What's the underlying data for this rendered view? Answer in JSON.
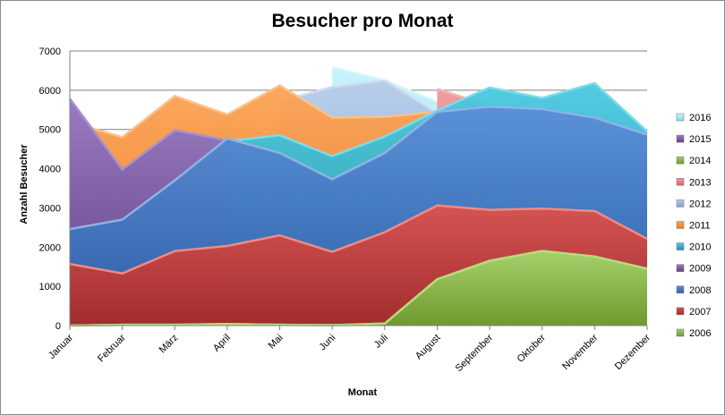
{
  "chart_data": {
    "type": "area",
    "title": "Besucher pro Monat",
    "xlabel": "Monat",
    "ylabel": "Anzahl Besucher",
    "ylim": [
      0,
      7000
    ],
    "yticks": [
      "0",
      "1000",
      "2000",
      "3000",
      "4000",
      "5000",
      "6000",
      "7000"
    ],
    "ytick_values": [
      0,
      1000,
      2000,
      3000,
      4000,
      5000,
      6000,
      7000
    ],
    "categories": [
      "Januar",
      "Februar",
      "März",
      "April",
      "Mai",
      "Juni",
      "Juli",
      "August",
      "September",
      "Oktober",
      "November",
      "Dezember"
    ],
    "grid": true,
    "legend_position": "right",
    "series": [
      {
        "name": "2016",
        "color": "#9fe3f5",
        "values": [
          null,
          null,
          null,
          null,
          null,
          6580,
          6250,
          5700,
          null,
          null,
          null,
          null
        ]
      },
      {
        "name": "2015",
        "color": "#8064a2",
        "values": [
          5780,
          3980,
          4980,
          4720,
          null,
          null,
          null,
          null,
          null,
          null,
          null,
          null
        ]
      },
      {
        "name": "2014",
        "color": "#8ab543",
        "values": [
          0,
          20,
          20,
          40,
          20,
          10,
          50,
          1180,
          1650,
          1900,
          1760,
          1450
        ]
      },
      {
        "name": "2013",
        "color": "#e07272",
        "values": [
          null,
          null,
          null,
          null,
          null,
          null,
          null,
          6030,
          5600,
          null,
          null,
          null
        ]
      },
      {
        "name": "2012",
        "color": "#95b3d7",
        "values": [
          null,
          null,
          null,
          null,
          5720,
          6080,
          6250,
          5420,
          null,
          null,
          null,
          null
        ]
      },
      {
        "name": "2011",
        "color": "#f79646",
        "values": [
          5200,
          4800,
          5850,
          5380,
          6120,
          5300,
          5320,
          5450,
          null,
          null,
          null,
          null
        ]
      },
      {
        "name": "2010",
        "color": "#31b3c9",
        "values": [
          null,
          null,
          null,
          4700,
          4850,
          4320,
          4820,
          5480,
          6070,
          5800,
          6180,
          4950
        ]
      },
      {
        "name": "2009",
        "color": "#7451a0",
        "values": [
          5780,
          3980,
          4980,
          4720,
          null,
          null,
          null,
          null,
          null,
          null,
          null,
          null
        ]
      },
      {
        "name": "2008",
        "color": "#4472c4",
        "values": [
          2460,
          2700,
          3700,
          4770,
          4400,
          3730,
          4400,
          5450,
          5580,
          5520,
          5300,
          4870
        ]
      },
      {
        "name": "2007",
        "color": "#c0504d",
        "values": [
          1570,
          1330,
          1900,
          2030,
          2300,
          1880,
          2380,
          3060,
          2950,
          2980,
          2920,
          2210
        ]
      },
      {
        "name": "2006",
        "color": "#8ab543",
        "values": [
          0,
          20,
          20,
          40,
          20,
          10,
          50,
          1180,
          1650,
          1900,
          1760,
          1450
        ]
      }
    ]
  }
}
